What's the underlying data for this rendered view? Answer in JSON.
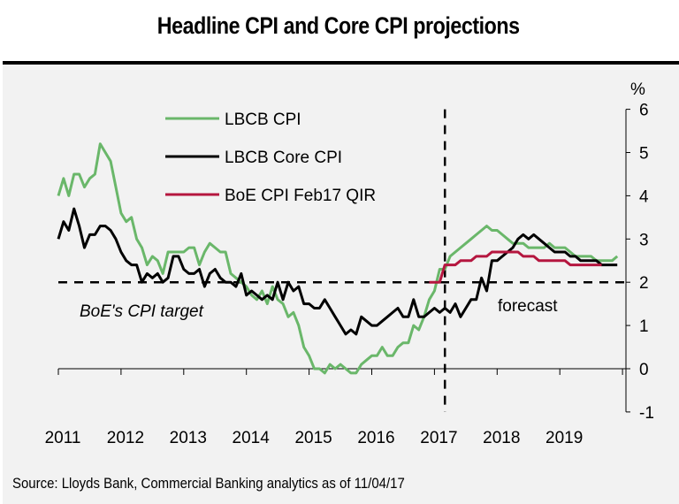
{
  "chart_data": {
    "type": "line",
    "title": "Headline CPI and Core CPI projections",
    "xlabel": "",
    "ylabel": "%",
    "ylim": [
      -1,
      6
    ],
    "yticks": [
      "6",
      "5",
      "4",
      "3",
      "2",
      "1",
      "0",
      "-1"
    ],
    "ytick_values": [
      6,
      5,
      4,
      3,
      2,
      1,
      0,
      -1
    ],
    "xticks": [
      "2011",
      "2012",
      "2013",
      "2014",
      "2015",
      "2016",
      "2017",
      "2018",
      "2019"
    ],
    "x_start": "2011-01",
    "x_frequency": "monthly",
    "y_axis_position": "right",
    "grid": false,
    "legend_position": "top-left",
    "reference_line": {
      "value": 2,
      "label": "BoE's CPI target",
      "style": "dashed"
    },
    "forecast_divider": {
      "x": "2017-03",
      "label": "forecast",
      "style": "dashed"
    },
    "series": [
      {
        "name": "LBCB CPI",
        "color": "#6ab76a",
        "start": "2011-01",
        "values": [
          4.0,
          4.4,
          4.0,
          4.5,
          4.5,
          4.2,
          4.4,
          4.5,
          5.2,
          5.0,
          4.8,
          4.2,
          3.6,
          3.4,
          3.5,
          3.0,
          2.8,
          2.4,
          2.6,
          2.5,
          2.2,
          2.7,
          2.7,
          2.7,
          2.7,
          2.8,
          2.8,
          2.4,
          2.7,
          2.9,
          2.8,
          2.7,
          2.7,
          2.2,
          2.1,
          2.0,
          1.9,
          1.7,
          1.6,
          1.8,
          1.5,
          1.9,
          1.6,
          1.5,
          1.2,
          1.3,
          1.0,
          0.5,
          0.3,
          0.0,
          0.0,
          -0.1,
          0.1,
          0.0,
          0.1,
          0.0,
          -0.1,
          -0.1,
          0.1,
          0.2,
          0.3,
          0.3,
          0.5,
          0.3,
          0.3,
          0.5,
          0.6,
          0.6,
          1.0,
          0.9,
          1.2,
          1.6,
          1.8,
          2.3,
          2.3,
          2.6,
          2.7,
          2.8,
          2.9,
          3.0,
          3.1,
          3.2,
          3.3,
          3.2,
          3.2,
          3.1,
          3.0,
          2.9,
          2.9,
          2.9,
          2.8,
          2.8,
          2.8,
          2.8,
          2.9,
          2.8,
          2.8,
          2.8,
          2.7,
          2.6,
          2.6,
          2.6,
          2.6,
          2.5,
          2.5,
          2.5,
          2.5,
          2.6
        ]
      },
      {
        "name": "LBCB Core CPI",
        "color": "#000000",
        "start": "2011-01",
        "values": [
          3.0,
          3.4,
          3.2,
          3.7,
          3.3,
          2.8,
          3.1,
          3.1,
          3.3,
          3.3,
          3.2,
          3.0,
          2.7,
          2.5,
          2.4,
          2.4,
          2.0,
          2.2,
          2.1,
          2.2,
          2.0,
          2.1,
          2.6,
          2.6,
          2.3,
          2.2,
          2.2,
          2.3,
          1.9,
          2.2,
          2.3,
          2.1,
          2.0,
          2.0,
          1.9,
          2.2,
          1.7,
          1.8,
          1.7,
          1.6,
          1.7,
          1.6,
          2.0,
          1.6,
          2.0,
          1.8,
          1.9,
          1.5,
          1.5,
          1.4,
          1.4,
          1.6,
          1.4,
          1.2,
          1.0,
          0.8,
          0.9,
          0.8,
          1.2,
          1.1,
          1.0,
          1.0,
          1.1,
          1.2,
          1.3,
          1.4,
          1.2,
          1.2,
          1.6,
          1.2,
          1.2,
          1.3,
          1.4,
          1.3,
          1.4,
          1.3,
          1.5,
          1.2,
          1.4,
          1.6,
          1.6,
          2.1,
          1.8,
          2.5,
          2.5,
          2.6,
          2.7,
          2.8,
          3.0,
          3.1,
          3.0,
          3.1,
          3.0,
          2.9,
          2.8,
          2.7,
          2.7,
          2.7,
          2.6,
          2.6,
          2.5,
          2.5,
          2.5,
          2.5,
          2.4,
          2.4,
          2.4,
          2.4
        ]
      },
      {
        "name": "BoE CPI Feb17 QIR",
        "color": "#b5163f",
        "start": "2016-12",
        "values": [
          2.0,
          2.0,
          2.0,
          2.4,
          2.4,
          2.4,
          2.5,
          2.5,
          2.5,
          2.6,
          2.6,
          2.6,
          2.7,
          2.7,
          2.7,
          2.7,
          2.7,
          2.7,
          2.6,
          2.6,
          2.6,
          2.5,
          2.5,
          2.5,
          2.5,
          2.5,
          2.5,
          2.4,
          2.4,
          2.4,
          2.4,
          2.4,
          2.4,
          2.4
        ]
      }
    ]
  },
  "header": {
    "title": "Headline CPI and Core CPI projections"
  },
  "axis": {
    "y_unit": "%"
  },
  "annotations": {
    "target_label": "BoE's CPI target",
    "forecast_label": "forecast"
  },
  "footer": {
    "source": "Source: Lloyds Bank, Commercial Banking analytics as of 11/04/17"
  }
}
